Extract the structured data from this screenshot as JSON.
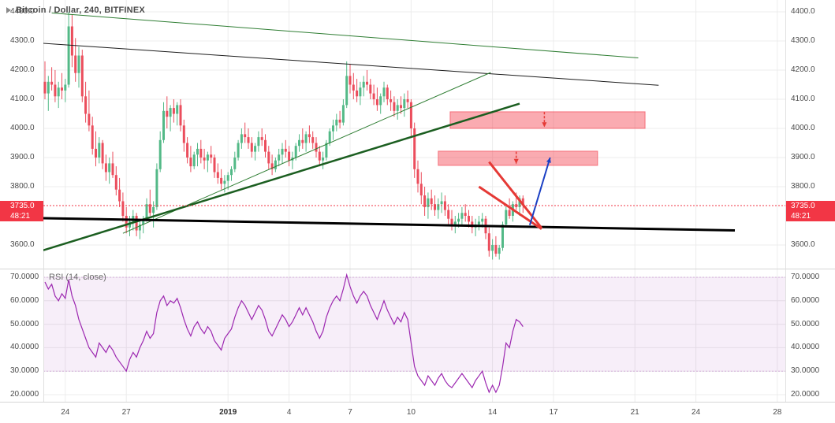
{
  "header": {
    "symbol_title": "Bitcoin / Dollar, 240, BITFINEX"
  },
  "rsi": {
    "legend": "RSI (14, close)"
  },
  "price_tag": {
    "price": "3735.0",
    "countdown": "48:21"
  },
  "colors": {
    "background": "#ffffff",
    "grid": "#ececec",
    "separator": "#d6d6d6",
    "axis_border": "#e0e0e0",
    "axis_text": "#4a4a4a",
    "candle_up": "#53b987",
    "candle_down": "#eb4d5c",
    "accent_red": "#f23645",
    "zone_fill": "#f23645",
    "rsi_line": "#9c27b0",
    "rsi_band_fill": "#9c27b0"
  },
  "axes": {
    "price_ticks": [
      {
        "label": "4400.0",
        "value": 4400
      },
      {
        "label": "4300.0",
        "value": 4300
      },
      {
        "label": "4200.0",
        "value": 4200
      },
      {
        "label": "4100.0",
        "value": 4100
      },
      {
        "label": "4000.0",
        "value": 4000
      },
      {
        "label": "3900.0",
        "value": 3900
      },
      {
        "label": "3800.0",
        "value": 3800
      },
      {
        "label": "3600.0",
        "value": 3600
      }
    ],
    "rsi_ticks": [
      {
        "label": "70.0000",
        "value": 70
      },
      {
        "label": "60.0000",
        "value": 60
      },
      {
        "label": "50.0000",
        "value": 50
      },
      {
        "label": "40.0000",
        "value": 40
      },
      {
        "label": "30.0000",
        "value": 30
      },
      {
        "label": "20.0000",
        "value": 20
      }
    ],
    "time_ticks": [
      {
        "label": "24",
        "i": 6
      },
      {
        "label": "27",
        "i": 24
      },
      {
        "label": "2019",
        "i": 54,
        "year": true
      },
      {
        "label": "4",
        "i": 72
      },
      {
        "label": "7",
        "i": 90
      },
      {
        "label": "10",
        "i": 108
      },
      {
        "label": "14",
        "i": 132
      },
      {
        "label": "17",
        "i": 150
      },
      {
        "label": "21",
        "i": 174
      },
      {
        "label": "24",
        "i": 192
      },
      {
        "label": "28",
        "i": 216
      }
    ]
  },
  "chart_data": [
    {
      "type": "candlestick",
      "title": "Bitcoin / Dollar, 240, BITFINEX",
      "last_price": 3735.0,
      "ylim": [
        3520,
        4440
      ],
      "candles": [
        [
          4160,
          4230,
          4100,
          4120
        ],
        [
          4120,
          4180,
          4060,
          4160
        ],
        [
          4160,
          4210,
          4130,
          4150
        ],
        [
          4150,
          4200,
          4090,
          4110
        ],
        [
          4110,
          4160,
          4070,
          4140
        ],
        [
          4140,
          4190,
          4100,
          4130
        ],
        [
          4130,
          4170,
          4090,
          4150
        ],
        [
          4150,
          4400,
          4140,
          4350
        ],
        [
          4350,
          4390,
          4210,
          4250
        ],
        [
          4250,
          4310,
          4160,
          4190
        ],
        [
          4190,
          4280,
          4140,
          4250
        ],
        [
          4250,
          4270,
          4090,
          4110
        ],
        [
          4110,
          4160,
          4020,
          4050
        ],
        [
          4050,
          4130,
          3990,
          4010
        ],
        [
          4010,
          4040,
          3910,
          3930
        ],
        [
          3930,
          3990,
          3870,
          3900
        ],
        [
          3900,
          3970,
          3880,
          3950
        ],
        [
          3950,
          3960,
          3860,
          3880
        ],
        [
          3880,
          3910,
          3820,
          3850
        ],
        [
          3850,
          3900,
          3810,
          3880
        ],
        [
          3880,
          3920,
          3830,
          3840
        ],
        [
          3840,
          3870,
          3770,
          3790
        ],
        [
          3790,
          3830,
          3730,
          3750
        ],
        [
          3750,
          3780,
          3680,
          3700
        ],
        [
          3700,
          3730,
          3640,
          3660
        ],
        [
          3660,
          3700,
          3630,
          3680
        ],
        [
          3680,
          3720,
          3650,
          3700
        ],
        [
          3700,
          3710,
          3630,
          3650
        ],
        [
          3650,
          3690,
          3620,
          3670
        ],
        [
          3670,
          3700,
          3640,
          3690
        ],
        [
          3690,
          3760,
          3680,
          3740
        ],
        [
          3740,
          3790,
          3700,
          3710
        ],
        [
          3710,
          3750,
          3660,
          3730
        ],
        [
          3730,
          3880,
          3720,
          3860
        ],
        [
          3860,
          3990,
          3850,
          3960
        ],
        [
          3960,
          4090,
          3950,
          4060
        ],
        [
          4060,
          4110,
          4000,
          4040
        ],
        [
          4040,
          4080,
          3990,
          4070
        ],
        [
          4070,
          4100,
          4020,
          4050
        ],
        [
          4050,
          4090,
          4010,
          4080
        ],
        [
          4080,
          4100,
          3990,
          4010
        ],
        [
          4010,
          4030,
          3920,
          3950
        ],
        [
          3950,
          3970,
          3880,
          3900
        ],
        [
          3900,
          3940,
          3850,
          3870
        ],
        [
          3870,
          3920,
          3860,
          3910
        ],
        [
          3910,
          3950,
          3870,
          3930
        ],
        [
          3930,
          3960,
          3880,
          3900
        ],
        [
          3900,
          3930,
          3860,
          3890
        ],
        [
          3890,
          3920,
          3850,
          3910
        ],
        [
          3910,
          3940,
          3880,
          3900
        ],
        [
          3900,
          3910,
          3830,
          3850
        ],
        [
          3850,
          3880,
          3810,
          3830
        ],
        [
          3830,
          3860,
          3790,
          3810
        ],
        [
          3810,
          3840,
          3780,
          3820
        ],
        [
          3820,
          3850,
          3790,
          3840
        ],
        [
          3840,
          3870,
          3820,
          3860
        ],
        [
          3860,
          3920,
          3850,
          3900
        ],
        [
          3900,
          3960,
          3890,
          3950
        ],
        [
          3950,
          4000,
          3930,
          3980
        ],
        [
          3980,
          4020,
          3950,
          3970
        ],
        [
          3970,
          4000,
          3930,
          3950
        ],
        [
          3950,
          3970,
          3900,
          3920
        ],
        [
          3920,
          3950,
          3890,
          3940
        ],
        [
          3940,
          3990,
          3920,
          3970
        ],
        [
          3970,
          4000,
          3940,
          3960
        ],
        [
          3960,
          3980,
          3900,
          3920
        ],
        [
          3920,
          3940,
          3860,
          3880
        ],
        [
          3880,
          3910,
          3840,
          3860
        ],
        [
          3860,
          3900,
          3850,
          3890
        ],
        [
          3890,
          3930,
          3870,
          3910
        ],
        [
          3910,
          3950,
          3880,
          3930
        ],
        [
          3930,
          3960,
          3900,
          3920
        ],
        [
          3920,
          3940,
          3870,
          3890
        ],
        [
          3890,
          3920,
          3860,
          3900
        ],
        [
          3900,
          3950,
          3890,
          3940
        ],
        [
          3940,
          3980,
          3920,
          3960
        ],
        [
          3960,
          4000,
          3930,
          3950
        ],
        [
          3950,
          3990,
          3920,
          3980
        ],
        [
          3980,
          4010,
          3950,
          3970
        ],
        [
          3970,
          3990,
          3930,
          3950
        ],
        [
          3950,
          3970,
          3900,
          3920
        ],
        [
          3920,
          3940,
          3870,
          3890
        ],
        [
          3890,
          3920,
          3860,
          3900
        ],
        [
          3900,
          3960,
          3890,
          3950
        ],
        [
          3950,
          4000,
          3940,
          3990
        ],
        [
          3990,
          4030,
          3960,
          4010
        ],
        [
          4010,
          4050,
          3990,
          4030
        ],
        [
          4030,
          4060,
          4000,
          4020
        ],
        [
          4020,
          4100,
          4010,
          4080
        ],
        [
          4080,
          4230,
          4070,
          4180
        ],
        [
          4180,
          4220,
          4120,
          4150
        ],
        [
          4150,
          4190,
          4100,
          4130
        ],
        [
          4130,
          4170,
          4090,
          4110
        ],
        [
          4110,
          4160,
          4080,
          4140
        ],
        [
          4140,
          4180,
          4110,
          4160
        ],
        [
          4160,
          4200,
          4130,
          4150
        ],
        [
          4150,
          4170,
          4100,
          4120
        ],
        [
          4120,
          4150,
          4080,
          4100
        ],
        [
          4100,
          4140,
          4060,
          4080
        ],
        [
          4080,
          4120,
          4050,
          4110
        ],
        [
          4110,
          4160,
          4090,
          4140
        ],
        [
          4140,
          4150,
          4080,
          4100
        ],
        [
          4100,
          4130,
          4060,
          4090
        ],
        [
          4090,
          4110,
          4040,
          4060
        ],
        [
          4060,
          4100,
          4030,
          4080
        ],
        [
          4080,
          4110,
          4050,
          4070
        ],
        [
          4070,
          4120,
          4040,
          4100
        ],
        [
          4100,
          4130,
          4070,
          4090
        ],
        [
          4090,
          4100,
          3970,
          4000
        ],
        [
          4000,
          4020,
          3830,
          3860
        ],
        [
          3860,
          3890,
          3780,
          3810
        ],
        [
          3810,
          3850,
          3740,
          3770
        ],
        [
          3770,
          3800,
          3700,
          3730
        ],
        [
          3730,
          3780,
          3690,
          3760
        ],
        [
          3760,
          3790,
          3720,
          3740
        ],
        [
          3740,
          3770,
          3700,
          3720
        ],
        [
          3720,
          3760,
          3690,
          3740
        ],
        [
          3740,
          3780,
          3710,
          3750
        ],
        [
          3750,
          3770,
          3700,
          3720
        ],
        [
          3720,
          3740,
          3670,
          3690
        ],
        [
          3690,
          3720,
          3650,
          3670
        ],
        [
          3670,
          3700,
          3640,
          3680
        ],
        [
          3680,
          3710,
          3660,
          3690
        ],
        [
          3690,
          3730,
          3670,
          3710
        ],
        [
          3710,
          3740,
          3680,
          3700
        ],
        [
          3700,
          3720,
          3660,
          3680
        ],
        [
          3680,
          3700,
          3640,
          3660
        ],
        [
          3660,
          3690,
          3630,
          3670
        ],
        [
          3670,
          3700,
          3650,
          3680
        ],
        [
          3680,
          3710,
          3660,
          3690
        ],
        [
          3690,
          3700,
          3620,
          3640
        ],
        [
          3640,
          3660,
          3560,
          3580
        ],
        [
          3580,
          3620,
          3550,
          3600
        ],
        [
          3600,
          3630,
          3560,
          3570
        ],
        [
          3570,
          3600,
          3550,
          3590
        ],
        [
          3590,
          3680,
          3580,
          3670
        ],
        [
          3670,
          3740,
          3660,
          3720
        ],
        [
          3720,
          3760,
          3690,
          3700
        ],
        [
          3700,
          3750,
          3680,
          3740
        ],
        [
          3740,
          3780,
          3720,
          3730
        ],
        [
          3730,
          3770,
          3700,
          3760
        ],
        [
          3760,
          3770,
          3710,
          3735
        ]
      ]
    },
    {
      "type": "line",
      "title": "RSI (14, close)",
      "ylim": [
        17,
        73.5
      ],
      "band": [
        30,
        70
      ],
      "values": [
        68,
        65,
        67,
        62,
        60,
        63,
        61,
        69,
        62,
        58,
        52,
        48,
        44,
        40,
        38,
        36,
        42,
        40,
        38,
        41,
        39,
        36,
        34,
        32,
        30,
        35,
        38,
        36,
        40,
        43,
        47,
        44,
        46,
        55,
        60,
        62,
        58,
        60,
        59,
        61,
        57,
        52,
        48,
        45,
        49,
        51,
        48,
        46,
        49,
        47,
        43,
        41,
        39,
        44,
        46,
        48,
        53,
        57,
        60,
        58,
        55,
        52,
        55,
        58,
        56,
        52,
        47,
        45,
        48,
        51,
        54,
        52,
        49,
        51,
        54,
        57,
        54,
        57,
        54,
        51,
        47,
        44,
        47,
        53,
        57,
        60,
        62,
        60,
        65,
        71,
        66,
        62,
        59,
        62,
        64,
        62,
        58,
        55,
        52,
        56,
        60,
        56,
        53,
        50,
        53,
        51,
        55,
        52,
        42,
        32,
        28,
        26,
        24,
        28,
        26,
        24,
        27,
        29,
        26,
        24,
        23,
        25,
        27,
        29,
        27,
        25,
        23,
        26,
        28,
        30,
        25,
        21,
        24,
        21,
        24,
        32,
        42,
        40,
        47,
        52,
        51,
        49
      ]
    }
  ],
  "drawings": {
    "trendlines": [
      {
        "name": "trendline-descending-black",
        "i1": -0.5,
        "p1": 4292,
        "i2": 181,
        "p2": 4148,
        "color": "#1c1c1c",
        "width": 1
      },
      {
        "name": "trendline-descending-green",
        "i1": 2,
        "p1": 4396,
        "i2": 175,
        "p2": 4242,
        "color": "#2e7d32",
        "width": 1
      },
      {
        "name": "trendline-ascending-green-thin",
        "i1": 23,
        "p1": 3640,
        "i2": 131.5,
        "p2": 4192,
        "color": "#2e7d32",
        "width": 1
      },
      {
        "name": "trendline-ascending-green-thick",
        "i1": -0.5,
        "p1": 3582,
        "i2": 140,
        "p2": 4085,
        "color": "#1b5e20",
        "width": 2.5
      },
      {
        "name": "support-line-black-thick",
        "i1": -0.5,
        "p1": 3692,
        "i2": 203.5,
        "p2": 3650,
        "color": "#000000",
        "width": 3
      },
      {
        "name": "red-trendline-steep",
        "i1": 131,
        "p1": 3885,
        "i2": 146.5,
        "p2": 3658,
        "color": "#e53935",
        "width": 3
      },
      {
        "name": "red-trendline-shallow",
        "i1": 128,
        "p1": 3800,
        "i2": 146.5,
        "p2": 3655,
        "color": "#e53935",
        "width": 3
      }
    ],
    "arrows": [
      {
        "name": "projection-arrow-blue-up",
        "i1": 143,
        "p1": 3668,
        "i2": 149,
        "p2": 3900,
        "color": "#1a3fc4",
        "width": 2,
        "dashed": false
      },
      {
        "name": "target-arrow-red-upper",
        "i1": 147.3,
        "p1": 4056,
        "i2": 147.3,
        "p2": 4004,
        "color": "#e53935",
        "width": 1.5,
        "dashed": true
      },
      {
        "name": "target-arrow-red-lower",
        "i1": 139,
        "p1": 3920,
        "i2": 139,
        "p2": 3878,
        "color": "#e53935",
        "width": 1.5,
        "dashed": true
      }
    ],
    "zones": [
      {
        "name": "resistance-zone-upper",
        "i1": 119.5,
        "p1": 4057,
        "i2": 177,
        "p2": 4000
      },
      {
        "name": "resistance-zone-lower",
        "i1": 116,
        "p1": 3922,
        "i2": 163,
        "p2": 3873
      }
    ]
  }
}
